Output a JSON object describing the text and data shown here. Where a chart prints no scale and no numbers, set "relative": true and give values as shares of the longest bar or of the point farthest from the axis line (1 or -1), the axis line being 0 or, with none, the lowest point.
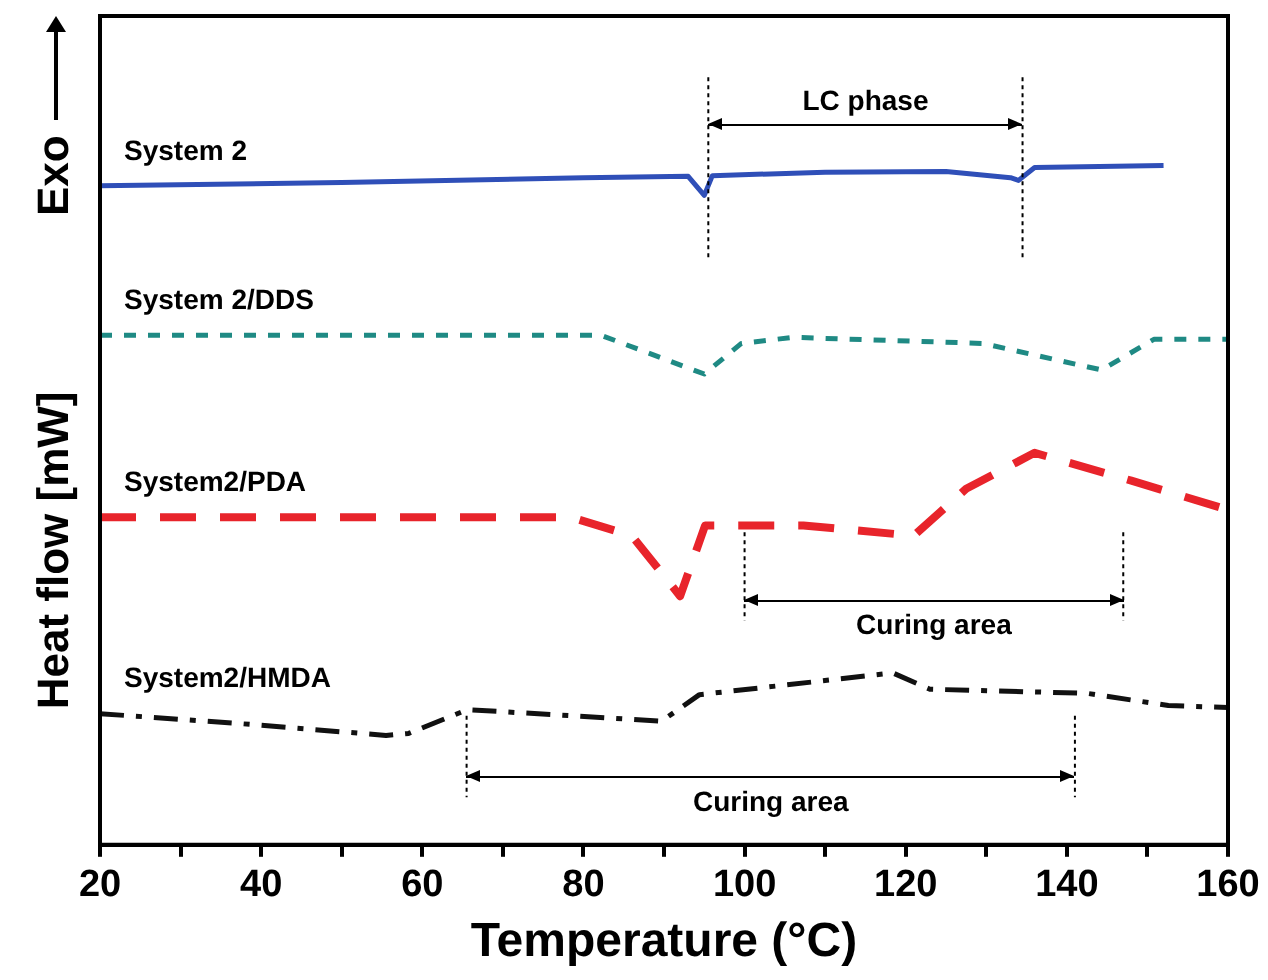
{
  "chart_data": {
    "type": "line",
    "relative": true,
    "xlabel": "Temperature (°C)",
    "ylabel": "Heat flow [mW]",
    "annotations": [
      "LC phase",
      "Curing area",
      "Curing area",
      "Exo"
    ],
    "xlim": [
      20,
      160
    ],
    "xticks": [
      20,
      {
        "value": 30,
        "label": null
      },
      40,
      {
        "value": 50,
        "label": null
      },
      60,
      {
        "value": 70,
        "label": null
      },
      80,
      {
        "value": 90,
        "label": null
      },
      100,
      {
        "value": 110,
        "label": null
      },
      120,
      {
        "value": 130,
        "label": null
      },
      140,
      {
        "value": 150,
        "label": null
      },
      160
    ],
    "legend": false,
    "grid": false,
    "marker": "none",
    "series": [
      {
        "name": "System 2",
        "color": "#2f4fb8",
        "line_style": "solid",
        "x": [
          20,
          50,
          80,
          93,
          95,
          96,
          110,
          125,
          133,
          134,
          136,
          152
        ],
        "values": [
          0.97,
          0.975,
          0.982,
          0.984,
          0.956,
          0.985,
          0.99,
          0.991,
          0.982,
          0.978,
          0.997,
          1
        ]
      },
      {
        "name": "System 2/DDS",
        "color": "#1f8a84",
        "line_style": "dotted",
        "x": [
          20,
          82.2,
          95,
          99.6,
          106,
          129.6,
          144.3,
          150.8,
          160
        ],
        "values": [
          0.75,
          0.75,
          0.693,
          0.738,
          0.747,
          0.738,
          0.699,
          0.744,
          0.744
        ]
      },
      {
        "name": "System2/PDA",
        "color": "#e8242b",
        "line_style": "dashed",
        "x": [
          20,
          78.5,
          86,
          92,
          95.1,
          107.3,
          121,
          127.5,
          136,
          148,
          160
        ],
        "values": [
          0.482,
          0.482,
          0.455,
          0.366,
          0.47,
          0.47,
          0.455,
          0.524,
          0.577,
          0.536,
          0.493
        ]
      },
      {
        "name": "System2/HMDA",
        "color": "#111111",
        "line_style": "dashdot",
        "x": [
          20,
          36.8,
          55.5,
          58.3,
          65.6,
          89.7,
          94.4,
          118.4,
          123,
          142.5,
          152.6,
          160
        ],
        "values": [
          0.193,
          0.179,
          0.161,
          0.164,
          0.199,
          0.182,
          0.221,
          0.253,
          0.229,
          0.223,
          0.205,
          0.202
        ]
      }
    ],
    "ref_lines": [
      {
        "axis": "x",
        "value": 95.5,
        "line_style": "dotted"
      },
      {
        "axis": "x",
        "value": 134.5,
        "line_style": "dotted"
      },
      {
        "axis": "x",
        "value": 100,
        "line_style": "dotted"
      },
      {
        "axis": "x",
        "value": 147,
        "line_style": "dotted"
      },
      {
        "axis": "x",
        "value": 65.5,
        "line_style": "dotted"
      },
      {
        "axis": "x",
        "value": 141,
        "line_style": "dotted"
      }
    ]
  }
}
